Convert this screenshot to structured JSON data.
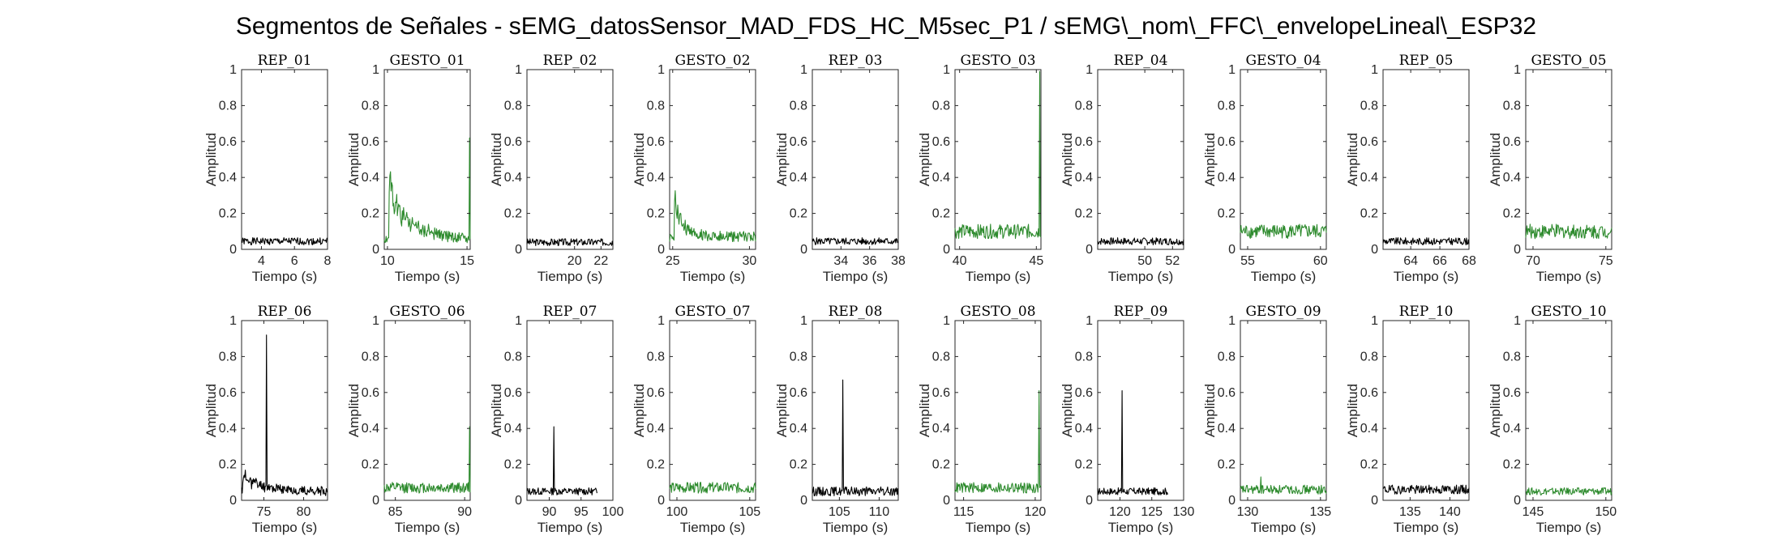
{
  "figure": {
    "title": "Segmentos de Señales - sEMG_datosSensor_MAD_FDS_HC_M5sec_P1 / sEMG\\_nom\\_FFC\\_envelopeLineal\\_ESP32"
  },
  "colors": {
    "rep": "#000000",
    "gesto": "#2e8b2e",
    "axis": "#262626"
  },
  "chart_data": [
    {
      "type": "line",
      "title": "REP_01",
      "xlabel": "Tiempo (s)",
      "ylabel": "Amplitud",
      "xlim": [
        2.8,
        8
      ],
      "ylim": [
        0,
        1
      ],
      "xticks": [
        4,
        6,
        8
      ],
      "yticks": [
        0,
        0.2,
        0.4,
        0.6,
        0.8,
        1
      ],
      "kind": "rep",
      "series": [
        {
          "baseline": 0.045,
          "noise": 0.02,
          "spikes": []
        }
      ]
    },
    {
      "type": "line",
      "title": "GESTO_01",
      "xlabel": "Tiempo (s)",
      "ylabel": "Amplitud",
      "xlim": [
        9.8,
        15.2
      ],
      "ylim": [
        0,
        1
      ],
      "xticks": [
        10,
        15
      ],
      "yticks": [
        0,
        0.2,
        0.4,
        0.6,
        0.8,
        1
      ],
      "kind": "gesto",
      "series": [
        {
          "baseline": 0.06,
          "noise": 0.03,
          "burst": {
            "start": 10.1,
            "peak": 0.4,
            "decay": 1.2
          },
          "spikes": [
            [
              15.15,
              0.62
            ]
          ]
        }
      ]
    },
    {
      "type": "line",
      "title": "REP_02",
      "xlabel": "Tiempo (s)",
      "ylabel": "Amplitud",
      "xlim": [
        16.4,
        22.9
      ],
      "ylim": [
        0,
        1
      ],
      "xticks": [
        20,
        22
      ],
      "yticks": [
        0,
        0.2,
        0.4,
        0.6,
        0.8,
        1
      ],
      "kind": "rep",
      "series": [
        {
          "baseline": 0.04,
          "noise": 0.02,
          "spikes": []
        }
      ]
    },
    {
      "type": "line",
      "title": "GESTO_02",
      "xlabel": "Tiempo (s)",
      "ylabel": "Amplitud",
      "xlim": [
        24.8,
        30.4
      ],
      "ylim": [
        0,
        1
      ],
      "xticks": [
        25,
        30
      ],
      "yticks": [
        0,
        0.2,
        0.4,
        0.6,
        0.8,
        1
      ],
      "kind": "gesto",
      "series": [
        {
          "baseline": 0.07,
          "noise": 0.03,
          "burst": {
            "start": 25.1,
            "peak": 0.28,
            "decay": 0.6
          },
          "spikes": []
        }
      ]
    },
    {
      "type": "line",
      "title": "REP_03",
      "xlabel": "Tiempo (s)",
      "ylabel": "Amplitud",
      "xlim": [
        32,
        38
      ],
      "ylim": [
        0,
        1
      ],
      "xticks": [
        34,
        36,
        38
      ],
      "yticks": [
        0,
        0.2,
        0.4,
        0.6,
        0.8,
        1
      ],
      "kind": "rep",
      "series": [
        {
          "baseline": 0.045,
          "noise": 0.02,
          "spikes": []
        }
      ]
    },
    {
      "type": "line",
      "title": "GESTO_03",
      "xlabel": "Tiempo (s)",
      "ylabel": "Amplitud",
      "xlim": [
        39.7,
        45.3
      ],
      "ylim": [
        0,
        1
      ],
      "xticks": [
        40,
        45
      ],
      "yticks": [
        0,
        0.2,
        0.4,
        0.6,
        0.8,
        1
      ],
      "kind": "gesto",
      "series": [
        {
          "baseline": 0.1,
          "noise": 0.04,
          "spikes": [
            [
              45.2,
              0.99
            ]
          ]
        }
      ]
    },
    {
      "type": "line",
      "title": "REP_04",
      "xlabel": "Tiempo (s)",
      "ylabel": "Amplitud",
      "xlim": [
        46.6,
        52.8
      ],
      "ylim": [
        0,
        1
      ],
      "xticks": [
        50,
        52
      ],
      "yticks": [
        0,
        0.2,
        0.4,
        0.6,
        0.8,
        1
      ],
      "kind": "rep",
      "series": [
        {
          "baseline": 0.045,
          "noise": 0.02,
          "spikes": []
        }
      ]
    },
    {
      "type": "line",
      "title": "GESTO_04",
      "xlabel": "Tiempo (s)",
      "ylabel": "Amplitud",
      "xlim": [
        54.5,
        60.4
      ],
      "ylim": [
        0,
        1
      ],
      "xticks": [
        55,
        60
      ],
      "yticks": [
        0,
        0.2,
        0.4,
        0.6,
        0.8,
        1
      ],
      "kind": "gesto",
      "series": [
        {
          "baseline": 0.1,
          "noise": 0.04,
          "spikes": []
        }
      ]
    },
    {
      "type": "line",
      "title": "REP_05",
      "xlabel": "Tiempo (s)",
      "ylabel": "Amplitud",
      "xlim": [
        62.1,
        68
      ],
      "ylim": [
        0,
        1
      ],
      "xticks": [
        64,
        66,
        68
      ],
      "yticks": [
        0,
        0.2,
        0.4,
        0.6,
        0.8,
        1
      ],
      "kind": "rep",
      "series": [
        {
          "baseline": 0.045,
          "noise": 0.02,
          "spikes": []
        }
      ]
    },
    {
      "type": "line",
      "title": "GESTO_05",
      "xlabel": "Tiempo (s)",
      "ylabel": "Amplitud",
      "xlim": [
        69.5,
        75.4
      ],
      "ylim": [
        0,
        1
      ],
      "xticks": [
        70,
        75
      ],
      "yticks": [
        0,
        0.2,
        0.4,
        0.6,
        0.8,
        1
      ],
      "kind": "gesto",
      "series": [
        {
          "baseline": 0.1,
          "noise": 0.04,
          "spikes": []
        }
      ]
    },
    {
      "type": "line",
      "title": "REP_06",
      "xlabel": "Tiempo (s)",
      "ylabel": "Amplitud",
      "xlim": [
        72.2,
        83
      ],
      "ylim": [
        0,
        1
      ],
      "xticks": [
        75,
        80
      ],
      "yticks": [
        0,
        0.2,
        0.4,
        0.6,
        0.8,
        1
      ],
      "kind": "rep",
      "series": [
        {
          "baseline": 0.05,
          "noise": 0.025,
          "burst": {
            "start": 72.3,
            "peak": 0.12,
            "decay": 2.5
          },
          "spikes": [
            [
              75.3,
              0.92
            ]
          ]
        }
      ]
    },
    {
      "type": "line",
      "title": "GESTO_06",
      "xlabel": "Tiempo (s)",
      "ylabel": "Amplitud",
      "xlim": [
        84.2,
        90.4
      ],
      "ylim": [
        0,
        1
      ],
      "xticks": [
        85,
        90
      ],
      "yticks": [
        0,
        0.2,
        0.4,
        0.6,
        0.8,
        1
      ],
      "kind": "gesto",
      "series": [
        {
          "baseline": 0.07,
          "noise": 0.03,
          "spikes": [
            [
              90.35,
              0.41
            ]
          ]
        }
      ]
    },
    {
      "type": "line",
      "title": "REP_07",
      "xlabel": "Tiempo (s)",
      "ylabel": "Amplitud",
      "xlim": [
        86.5,
        100
      ],
      "ylim": [
        0,
        1
      ],
      "xticks": [
        90,
        95,
        100
      ],
      "yticks": [
        0,
        0.2,
        0.4,
        0.6,
        0.8,
        1
      ],
      "kind": "rep",
      "series": [
        {
          "baseline": 0.05,
          "noise": 0.02,
          "xmax": 97.5,
          "spikes": [
            [
              90.7,
              0.41
            ]
          ]
        }
      ]
    },
    {
      "type": "line",
      "title": "GESTO_07",
      "xlabel": "Tiempo (s)",
      "ylabel": "Amplitud",
      "xlim": [
        99.5,
        105.4
      ],
      "ylim": [
        0,
        1
      ],
      "xticks": [
        100,
        105
      ],
      "yticks": [
        0,
        0.2,
        0.4,
        0.6,
        0.8,
        1
      ],
      "kind": "gesto",
      "series": [
        {
          "baseline": 0.07,
          "noise": 0.03,
          "spikes": []
        }
      ]
    },
    {
      "type": "line",
      "title": "REP_08",
      "xlabel": "Tiempo (s)",
      "ylabel": "Amplitud",
      "xlim": [
        101.6,
        112.4
      ],
      "ylim": [
        0,
        1
      ],
      "xticks": [
        105,
        110
      ],
      "yticks": [
        0,
        0.2,
        0.4,
        0.6,
        0.8,
        1
      ],
      "kind": "rep",
      "series": [
        {
          "baseline": 0.05,
          "noise": 0.025,
          "spikes": [
            [
              105.4,
              0.67
            ]
          ]
        }
      ]
    },
    {
      "type": "line",
      "title": "GESTO_08",
      "xlabel": "Tiempo (s)",
      "ylabel": "Amplitud",
      "xlim": [
        114.4,
        120.4
      ],
      "ylim": [
        0,
        1
      ],
      "xticks": [
        115,
        120
      ],
      "yticks": [
        0,
        0.2,
        0.4,
        0.6,
        0.8,
        1
      ],
      "kind": "gesto",
      "series": [
        {
          "baseline": 0.07,
          "noise": 0.03,
          "spikes": [
            [
              120.25,
              0.61
            ]
          ]
        }
      ]
    },
    {
      "type": "line",
      "title": "REP_09",
      "xlabel": "Tiempo (s)",
      "ylabel": "Amplitud",
      "xlim": [
        116.5,
        130
      ],
      "ylim": [
        0,
        1
      ],
      "xticks": [
        120,
        125,
        130
      ],
      "yticks": [
        0,
        0.2,
        0.4,
        0.6,
        0.8,
        1
      ],
      "kind": "rep",
      "series": [
        {
          "baseline": 0.05,
          "noise": 0.02,
          "xmax": 127.5,
          "spikes": [
            [
              120.3,
              0.61
            ]
          ]
        }
      ]
    },
    {
      "type": "line",
      "title": "GESTO_09",
      "xlabel": "Tiempo (s)",
      "ylabel": "Amplitud",
      "xlim": [
        129.5,
        135.4
      ],
      "ylim": [
        0,
        1
      ],
      "xticks": [
        130,
        135
      ],
      "yticks": [
        0,
        0.2,
        0.4,
        0.6,
        0.8,
        1
      ],
      "kind": "gesto",
      "series": [
        {
          "baseline": 0.06,
          "noise": 0.025,
          "spikes": [
            [
              130.9,
              0.13
            ]
          ]
        }
      ]
    },
    {
      "type": "line",
      "title": "REP_10",
      "xlabel": "Tiempo (s)",
      "ylabel": "Amplitud",
      "xlim": [
        131.6,
        142.4
      ],
      "ylim": [
        0,
        1
      ],
      "xticks": [
        135,
        140
      ],
      "yticks": [
        0,
        0.2,
        0.4,
        0.6,
        0.8,
        1
      ],
      "kind": "rep",
      "series": [
        {
          "baseline": 0.06,
          "noise": 0.025,
          "spikes": []
        }
      ]
    },
    {
      "type": "line",
      "title": "GESTO_10",
      "xlabel": "Tiempo (s)",
      "ylabel": "Amplitud",
      "xlim": [
        144.5,
        150.4
      ],
      "ylim": [
        0,
        1
      ],
      "xticks": [
        145,
        150
      ],
      "yticks": [
        0,
        0.2,
        0.4,
        0.6,
        0.8,
        1
      ],
      "kind": "gesto",
      "series": [
        {
          "baseline": 0.05,
          "noise": 0.02,
          "spikes": []
        }
      ]
    }
  ]
}
